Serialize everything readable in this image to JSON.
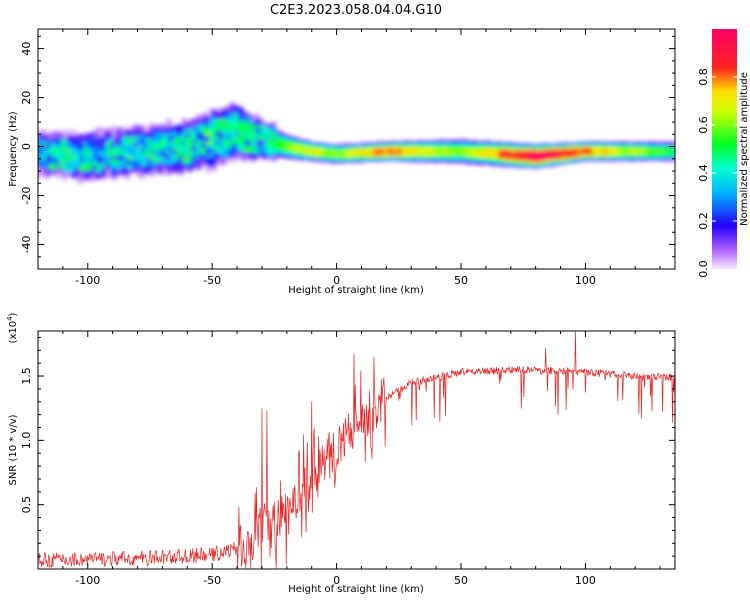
{
  "title": "C2E3.2023.058.04.04.G10",
  "colors": {
    "snr_line": "#ee2222",
    "frame": "#000000"
  },
  "chart_data": [
    {
      "type": "heatmap",
      "xlabel": "Height of straight line (km)",
      "ylabel": "Frequency (Hz)",
      "xlim": [
        -120,
        136
      ],
      "ylim": [
        -50,
        48
      ],
      "x_ticks": [
        "-100",
        "-50",
        "0",
        "50",
        "100"
      ],
      "y_ticks": [
        "40",
        "20",
        "0",
        "-20",
        "-40"
      ],
      "colorbar": {
        "label": "Normalized spectral amplitude",
        "range": [
          0,
          1
        ],
        "ticks": [
          "0.0",
          "0.2",
          "0.4",
          "0.6",
          "0.8"
        ],
        "colormap": "rainbow (violet → blue → cyan → green → yellow → red → magenta)"
      },
      "ridge": {
        "x": [
          -120,
          -100,
          -80,
          -60,
          -50,
          -40,
          -30,
          -20,
          -10,
          0,
          20,
          50,
          80,
          100,
          136
        ],
        "center_freq": [
          -3,
          -4,
          -2,
          0,
          3,
          6,
          3,
          0,
          -2,
          -3,
          -2,
          -2,
          -4,
          -2,
          -2
        ],
        "amplitude": [
          0.3,
          0.35,
          0.4,
          0.45,
          0.45,
          0.45,
          0.5,
          0.6,
          0.7,
          0.6,
          0.8,
          0.6,
          1.0,
          0.8,
          0.5
        ],
        "spread_hz": [
          7,
          8,
          8,
          9,
          10,
          10,
          6,
          4,
          3,
          3,
          3,
          4,
          4,
          3,
          3
        ]
      }
    },
    {
      "type": "line",
      "xlabel": "Height of straight line (km)",
      "ylabel": "SNR (10 * v/v)",
      "y_multiplier": "(x10",
      "y_multiplier_exp": "4",
      "xlim": [
        -120,
        136
      ],
      "ylim": [
        0,
        1.85
      ],
      "x_ticks": [
        "-100",
        "-50",
        "0",
        "50",
        "100"
      ],
      "y_ticks": [
        "0.5",
        "1.0",
        "1.5"
      ],
      "series": [
        {
          "trend_x": [
            -120,
            -80,
            -50,
            -40,
            -30,
            -20,
            -10,
            0,
            10,
            20,
            30,
            50,
            75,
            100,
            120,
            136
          ],
          "trend_y": [
            0.07,
            0.08,
            0.11,
            0.16,
            0.28,
            0.45,
            0.7,
            0.95,
            1.15,
            1.32,
            1.45,
            1.53,
            1.55,
            1.53,
            1.5,
            1.49
          ],
          "spikes": [
            [
              -30,
              1.25
            ],
            [
              -28,
              1.23
            ],
            [
              -10,
              1.3
            ],
            [
              7,
              1.67
            ],
            [
              15,
              1.65
            ],
            [
              84,
              1.72
            ],
            [
              96,
              1.85
            ],
            [
              -5,
              0.93
            ],
            [
              -2,
              0.98
            ]
          ]
        }
      ]
    }
  ]
}
